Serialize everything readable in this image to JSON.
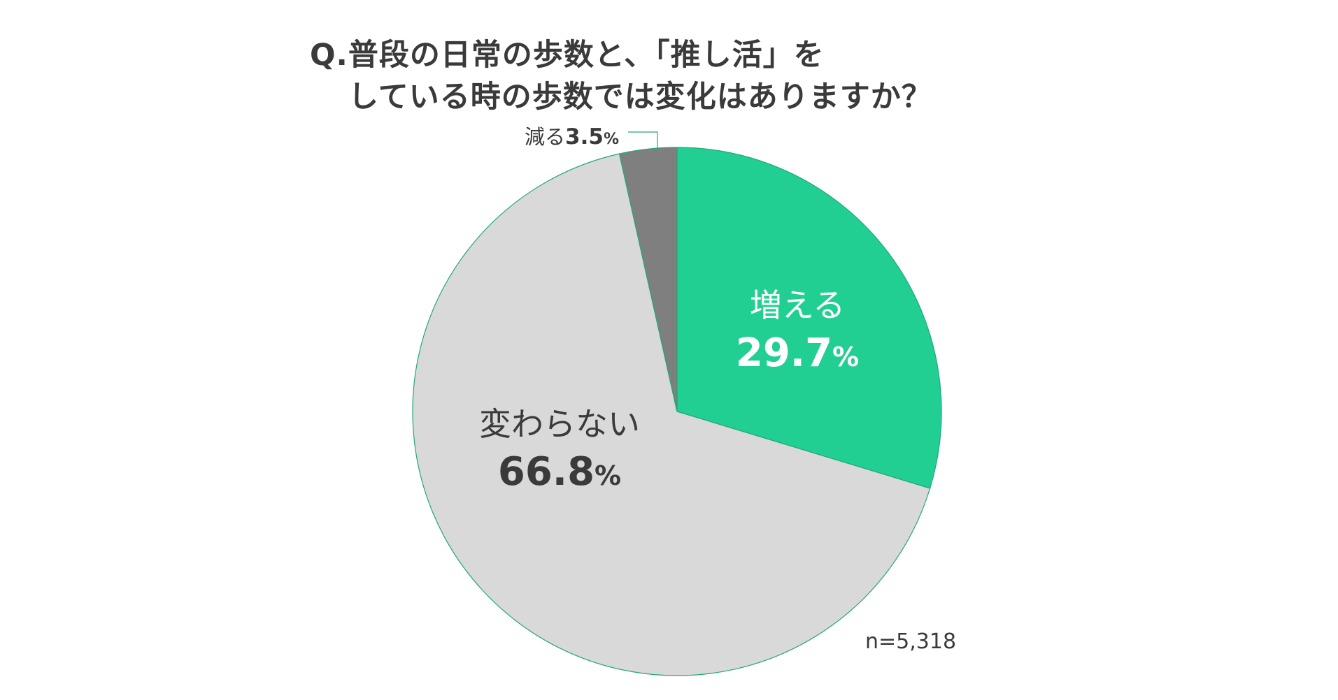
{
  "chart_data": {
    "type": "pie",
    "title_lines": [
      "Q.普段の日常の歩数と、「推し活」を",
      "している時の歩数では変化はありますか？"
    ],
    "slices": [
      {
        "label": "増える",
        "value": 29.7,
        "value_text": "29.7",
        "unit": "%",
        "color": "#22cf93",
        "label_color": "#ffffff",
        "label_style": "inside"
      },
      {
        "label": "変わらない",
        "value": 66.8,
        "value_text": "66.8",
        "unit": "%",
        "color": "#d9d9d9",
        "label_color": "#3a3a3a",
        "label_style": "inside"
      },
      {
        "label": "減る",
        "value": 3.5,
        "value_text": "3.5",
        "unit": "%",
        "color": "#7f7f7f",
        "label_color": "#3a3a3a",
        "label_style": "callout"
      }
    ],
    "start": "12 o'clock",
    "direction": "clockwise",
    "outline_color": "#22a77a",
    "note": "n=5,318"
  }
}
